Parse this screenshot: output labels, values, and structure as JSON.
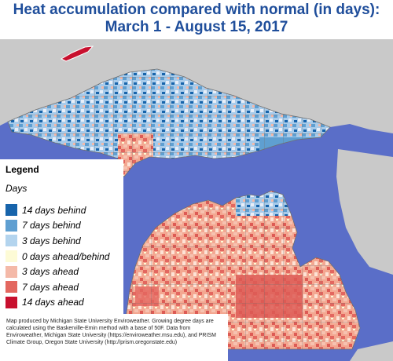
{
  "title": {
    "line1": "Heat accumulation compared with normal (in days):",
    "line2": "March 1 - August 15, 2017",
    "color": "#1f4e9b"
  },
  "legend": {
    "heading": "Legend",
    "subtitle": "Days",
    "items": [
      {
        "label": "14 days behind",
        "color": "#1764ab"
      },
      {
        "label": "7 days behind",
        "color": "#5f9fd1"
      },
      {
        "label": "3 days behind",
        "color": "#b3d4ee"
      },
      {
        "label": "0 days ahead/behind",
        "color": "#fdfbd6"
      },
      {
        "label": "3 days ahead",
        "color": "#f4b9a8"
      },
      {
        "label": "7 days ahead",
        "color": "#e3675f"
      },
      {
        "label": "14 days ahead",
        "color": "#c8102e"
      }
    ]
  },
  "credit": {
    "text": "Map produced by Michigan State University Enviroweather. Growing degree days are calculated using the Baskerville-Emin method with a base of 50F. Data from Enviroweather, Michigan State University (https://enviroweather.msu.edu), and PRISM Climate Group, Oregon State University (http://prism.oregonstate.edu)"
  },
  "map_colors": {
    "water": "#5a6ec8",
    "land_outside": "#c9c9c9",
    "county_lines": "#6f6f6f"
  }
}
